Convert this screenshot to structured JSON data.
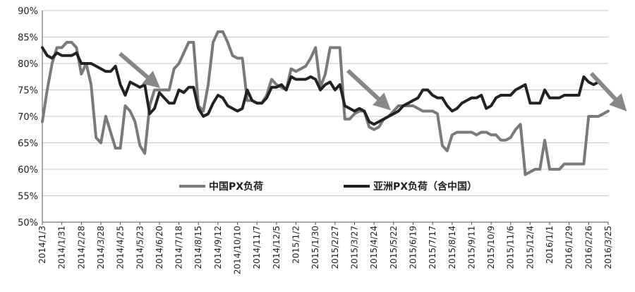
{
  "chart_data": {
    "type": "line",
    "yticks": [
      "50%",
      "55%",
      "60%",
      "65%",
      "70%",
      "75%",
      "80%",
      "85%",
      "90%"
    ],
    "ylim": [
      50,
      90
    ],
    "xlim": [
      0,
      116
    ],
    "grid": "horizontal",
    "legend_placement": "center",
    "x_tick_labels": [
      "2014/1/3",
      "2014/1/31",
      "2014/2/28",
      "2014/3/28",
      "2014/4/25",
      "2014/5/23",
      "2014/6/20",
      "2014/7/18",
      "2014/8/15",
      "2014/9/12",
      "2014/10/10",
      "2014/11/7",
      "2014/12/5",
      "2015/1/2",
      "2015/1/30",
      "2015/2/27",
      "2015/3/27",
      "2015/4/24",
      "2015/5/22",
      "2015/6/19",
      "2015/7/17",
      "2015/8/14",
      "2015/9/11",
      "2015/10/9",
      "2015/11/6",
      "2015/12/4",
      "2016/1/1",
      "2016/1/29",
      "2016/2/26",
      "2016/3/25"
    ],
    "series": [
      {
        "name": "中国PX负荷",
        "color": "#7a7a7a",
        "y": [
          69,
          75,
          80,
          83,
          83,
          84,
          84,
          83,
          78,
          80,
          76,
          66,
          65,
          70,
          67,
          64,
          64,
          72,
          71,
          69,
          64.5,
          63,
          72,
          75,
          75,
          75,
          75,
          79,
          80,
          82,
          84,
          84,
          72,
          71,
          76,
          84,
          86,
          86,
          84,
          81.5,
          81,
          81,
          73,
          73,
          72.5,
          72.5,
          74,
          77,
          76,
          75.5,
          75,
          79,
          78.5,
          79,
          79.5,
          81,
          83,
          75.5,
          78,
          83,
          83,
          83,
          69.5,
          69.5,
          70.5,
          71,
          71,
          68,
          67.5,
          68,
          69.5,
          70,
          71,
          72,
          72,
          72,
          72,
          71.5,
          71,
          71,
          71,
          70.5,
          64.5,
          63.5,
          66.5,
          67,
          67,
          67,
          67,
          66.5,
          67,
          67,
          66.5,
          66.5,
          65.5,
          65.5,
          66,
          67.5,
          68.5,
          59,
          59.5,
          60,
          60,
          65.5,
          60,
          60,
          60,
          61,
          61,
          61,
          61,
          61,
          70,
          70,
          70,
          70.5,
          71
        ]
      },
      {
        "name": "亚洲PX负荷（含中国）",
        "color": "#222222",
        "y": [
          83,
          81.5,
          81,
          82,
          81.5,
          81.5,
          81.5,
          82,
          80,
          80,
          80,
          79.5,
          79,
          78.5,
          78.5,
          79.5,
          76,
          74,
          76.5,
          76,
          75.5,
          76,
          70.5,
          71.5,
          74.5,
          73.5,
          72.5,
          72.5,
          75,
          74.5,
          75.5,
          75.5,
          71.5,
          70,
          70.5,
          72.5,
          74,
          73.5,
          72,
          71.5,
          71,
          71.5,
          75,
          73,
          72.5,
          72.5,
          73.5,
          75.5,
          75.5,
          76,
          75,
          77.5,
          77,
          77,
          77,
          77.5,
          77,
          75,
          76,
          76.5,
          75,
          76,
          72,
          71.5,
          71,
          71.5,
          71,
          69,
          68.5,
          69,
          69.5,
          70,
          70.5,
          71,
          72,
          72.5,
          73,
          73.5,
          75,
          75,
          74,
          73.5,
          73.5,
          72,
          71,
          71.5,
          72.5,
          73,
          73.5,
          73.5,
          74,
          71.5,
          72,
          73.5,
          74,
          74,
          74,
          75,
          75.5,
          76,
          72.5,
          72.5,
          72.5,
          75,
          73.5,
          73.5,
          73.5,
          74,
          74,
          74,
          74,
          77.5,
          76.5,
          76,
          76.5
        ]
      }
    ]
  }
}
